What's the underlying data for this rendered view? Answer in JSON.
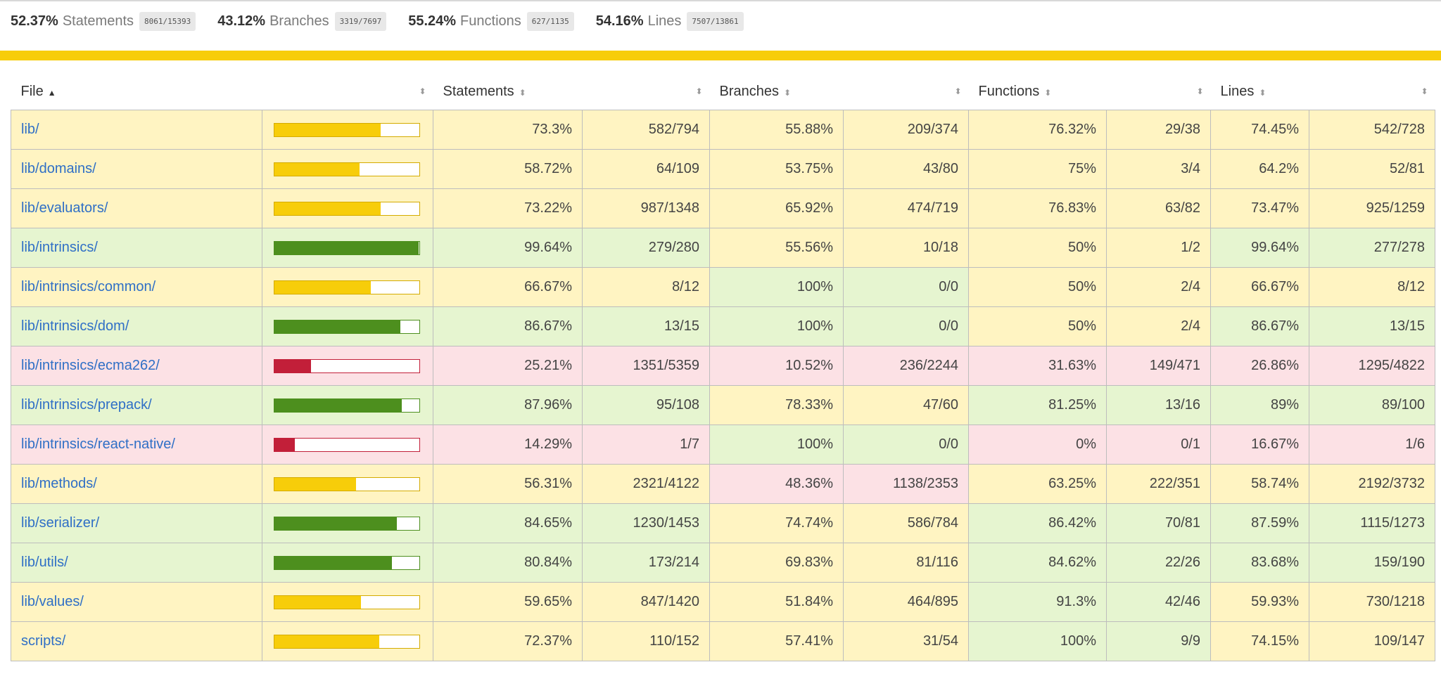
{
  "summary": [
    {
      "pct": "52.37%",
      "label": "Statements",
      "frac": "8061/15393"
    },
    {
      "pct": "43.12%",
      "label": "Branches",
      "frac": "3319/7697"
    },
    {
      "pct": "55.24%",
      "label": "Functions",
      "frac": "627/1135"
    },
    {
      "pct": "54.16%",
      "label": "Lines",
      "frac": "7507/13861"
    }
  ],
  "headers": {
    "file": "File",
    "statements": "Statements",
    "branches": "Branches",
    "functions": "Functions",
    "lines": "Lines"
  },
  "colors": {
    "high": "#4d8f1e",
    "medium": "#f7cd0a",
    "low": "#c21f39",
    "link": "#2f6fc6"
  },
  "rows": [
    {
      "file": "lib/",
      "level": "medium",
      "stmt_fill": 0.733,
      "stmt_pct": "73.3%",
      "stmt_frac": "582/794",
      "br_pct": "55.88%",
      "br_frac": "209/374",
      "fn_pct": "76.32%",
      "fn_frac": "29/38",
      "ln_pct": "74.45%",
      "ln_frac": "542/728",
      "br_level": "medium",
      "fn_level": "medium",
      "ln_level": "medium"
    },
    {
      "file": "lib/domains/",
      "level": "medium",
      "stmt_fill": 0.5872,
      "stmt_pct": "58.72%",
      "stmt_frac": "64/109",
      "br_pct": "53.75%",
      "br_frac": "43/80",
      "fn_pct": "75%",
      "fn_frac": "3/4",
      "ln_pct": "64.2%",
      "ln_frac": "52/81",
      "br_level": "medium",
      "fn_level": "medium",
      "ln_level": "medium"
    },
    {
      "file": "lib/evaluators/",
      "level": "medium",
      "stmt_fill": 0.7322,
      "stmt_pct": "73.22%",
      "stmt_frac": "987/1348",
      "br_pct": "65.92%",
      "br_frac": "474/719",
      "fn_pct": "76.83%",
      "fn_frac": "63/82",
      "ln_pct": "73.47%",
      "ln_frac": "925/1259",
      "br_level": "medium",
      "fn_level": "medium",
      "ln_level": "medium"
    },
    {
      "file": "lib/intrinsics/",
      "level": "high",
      "stmt_fill": 0.9964,
      "stmt_pct": "99.64%",
      "stmt_frac": "279/280",
      "br_pct": "55.56%",
      "br_frac": "10/18",
      "fn_pct": "50%",
      "fn_frac": "1/2",
      "ln_pct": "99.64%",
      "ln_frac": "277/278",
      "br_level": "medium",
      "fn_level": "medium",
      "ln_level": "high"
    },
    {
      "file": "lib/intrinsics/common/",
      "level": "medium",
      "stmt_fill": 0.6667,
      "stmt_pct": "66.67%",
      "stmt_frac": "8/12",
      "br_pct": "100%",
      "br_frac": "0/0",
      "fn_pct": "50%",
      "fn_frac": "2/4",
      "ln_pct": "66.67%",
      "ln_frac": "8/12",
      "br_level": "high",
      "fn_level": "medium",
      "ln_level": "medium"
    },
    {
      "file": "lib/intrinsics/dom/",
      "level": "high",
      "stmt_fill": 0.8667,
      "stmt_pct": "86.67%",
      "stmt_frac": "13/15",
      "br_pct": "100%",
      "br_frac": "0/0",
      "fn_pct": "50%",
      "fn_frac": "2/4",
      "ln_pct": "86.67%",
      "ln_frac": "13/15",
      "br_level": "high",
      "fn_level": "medium",
      "ln_level": "high"
    },
    {
      "file": "lib/intrinsics/ecma262/",
      "level": "low",
      "stmt_fill": 0.2521,
      "stmt_pct": "25.21%",
      "stmt_frac": "1351/5359",
      "br_pct": "10.52%",
      "br_frac": "236/2244",
      "fn_pct": "31.63%",
      "fn_frac": "149/471",
      "ln_pct": "26.86%",
      "ln_frac": "1295/4822",
      "br_level": "low",
      "fn_level": "low",
      "ln_level": "low"
    },
    {
      "file": "lib/intrinsics/prepack/",
      "level": "high",
      "stmt_fill": 0.8796,
      "stmt_pct": "87.96%",
      "stmt_frac": "95/108",
      "br_pct": "78.33%",
      "br_frac": "47/60",
      "fn_pct": "81.25%",
      "fn_frac": "13/16",
      "ln_pct": "89%",
      "ln_frac": "89/100",
      "br_level": "medium",
      "fn_level": "high",
      "ln_level": "high"
    },
    {
      "file": "lib/intrinsics/react-native/",
      "level": "low",
      "stmt_fill": 0.1429,
      "stmt_pct": "14.29%",
      "stmt_frac": "1/7",
      "br_pct": "100%",
      "br_frac": "0/0",
      "fn_pct": "0%",
      "fn_frac": "0/1",
      "ln_pct": "16.67%",
      "ln_frac": "1/6",
      "br_level": "high",
      "fn_level": "low",
      "ln_level": "low"
    },
    {
      "file": "lib/methods/",
      "level": "medium",
      "stmt_fill": 0.5631,
      "stmt_pct": "56.31%",
      "stmt_frac": "2321/4122",
      "br_pct": "48.36%",
      "br_frac": "1138/2353",
      "fn_pct": "63.25%",
      "fn_frac": "222/351",
      "ln_pct": "58.74%",
      "ln_frac": "2192/3732",
      "br_level": "low",
      "fn_level": "medium",
      "ln_level": "medium"
    },
    {
      "file": "lib/serializer/",
      "level": "high",
      "stmt_fill": 0.8465,
      "stmt_pct": "84.65%",
      "stmt_frac": "1230/1453",
      "br_pct": "74.74%",
      "br_frac": "586/784",
      "fn_pct": "86.42%",
      "fn_frac": "70/81",
      "ln_pct": "87.59%",
      "ln_frac": "1115/1273",
      "br_level": "medium",
      "fn_level": "high",
      "ln_level": "high"
    },
    {
      "file": "lib/utils/",
      "level": "high",
      "stmt_fill": 0.8084,
      "stmt_pct": "80.84%",
      "stmt_frac": "173/214",
      "br_pct": "69.83%",
      "br_frac": "81/116",
      "fn_pct": "84.62%",
      "fn_frac": "22/26",
      "ln_pct": "83.68%",
      "ln_frac": "159/190",
      "br_level": "medium",
      "fn_level": "high",
      "ln_level": "high"
    },
    {
      "file": "lib/values/",
      "level": "medium",
      "stmt_fill": 0.5965,
      "stmt_pct": "59.65%",
      "stmt_frac": "847/1420",
      "br_pct": "51.84%",
      "br_frac": "464/895",
      "fn_pct": "91.3%",
      "fn_frac": "42/46",
      "ln_pct": "59.93%",
      "ln_frac": "730/1218",
      "br_level": "medium",
      "fn_level": "high",
      "ln_level": "medium"
    },
    {
      "file": "scripts/",
      "level": "medium",
      "stmt_fill": 0.7237,
      "stmt_pct": "72.37%",
      "stmt_frac": "110/152",
      "br_pct": "57.41%",
      "br_frac": "31/54",
      "fn_pct": "100%",
      "fn_frac": "9/9",
      "ln_pct": "74.15%",
      "ln_frac": "109/147",
      "br_level": "medium",
      "fn_level": "high",
      "ln_level": "medium"
    }
  ]
}
